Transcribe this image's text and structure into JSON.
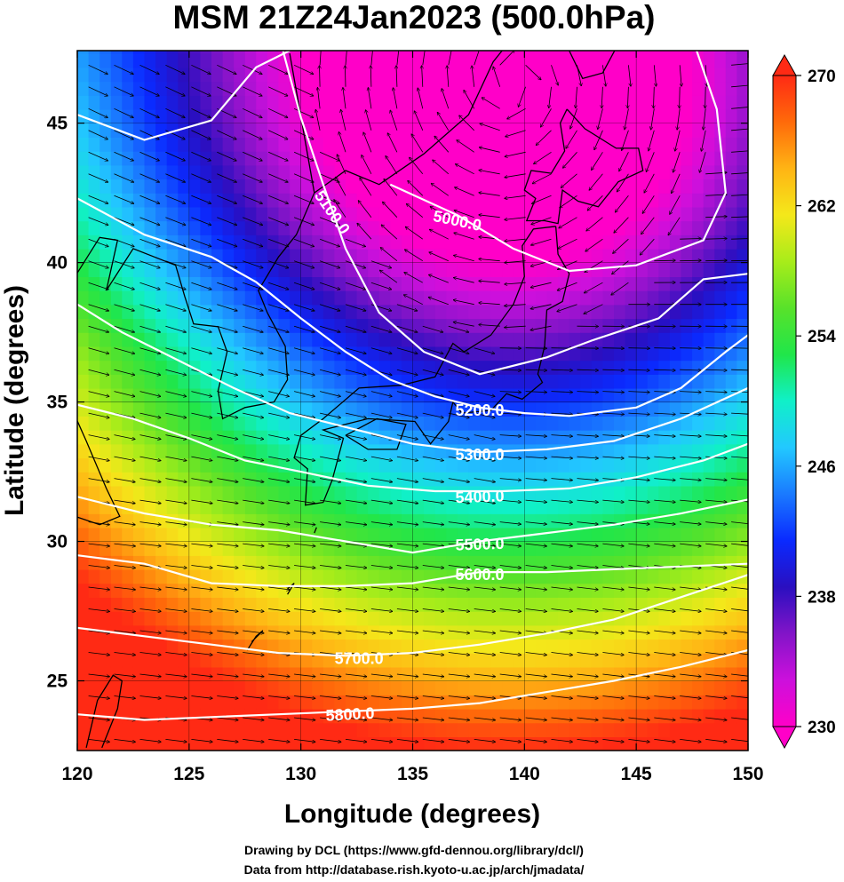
{
  "title": "MSM 21Z24Jan2023 (500.0hPa)",
  "axes": {
    "xlabel": "Longitude (degrees)",
    "ylabel": "Latitude  (degrees)",
    "x_range": [
      120,
      150
    ],
    "y_range": [
      22.5,
      47.6
    ],
    "x_ticks": [
      "120",
      "125",
      "130",
      "135",
      "140",
      "145",
      "150"
    ],
    "y_ticks": [
      "25",
      "30",
      "35",
      "40",
      "45"
    ],
    "grid": true
  },
  "colorbar": {
    "ticks": [
      "270",
      "262",
      "254",
      "246",
      "238",
      "230"
    ],
    "range": [
      230,
      270
    ],
    "orientation": "vertical",
    "extend": "both",
    "palette": [
      "#ff00c8",
      "#cc10dc",
      "#8214c8",
      "#2a0fc0",
      "#0a2aff",
      "#1a7aff",
      "#22c8ff",
      "#10f0c8",
      "#20e64a",
      "#58e22a",
      "#a8ec1a",
      "#f4e81a",
      "#ffb414",
      "#ff6a0a",
      "#ff2a14"
    ]
  },
  "chart_data": {
    "type": "heatmap",
    "field": "temperature",
    "contours": [
      {
        "label": "5000.0",
        "points": [
          [
            134.0,
            42.8
          ],
          [
            137.0,
            41.7
          ],
          [
            139.5,
            40.5
          ],
          [
            142.0,
            39.7
          ],
          [
            145.0,
            39.9
          ],
          [
            148.0,
            40.8
          ],
          [
            149.0,
            42.5
          ],
          [
            148.6,
            45.5
          ],
          [
            147.7,
            47.6
          ]
        ]
      },
      {
        "label": "5100.0",
        "points": [
          [
            120.0,
            45.3
          ],
          [
            123.0,
            44.4
          ],
          [
            126.0,
            45.1
          ],
          [
            128.0,
            47.0
          ],
          [
            129.5,
            47.6
          ]
        ]
      },
      {
        "label": "5100.0",
        "points": [
          [
            129.2,
            47.6
          ],
          [
            130.0,
            45.2
          ],
          [
            131.0,
            42.8
          ],
          [
            132.0,
            40.5
          ],
          [
            133.5,
            38.2
          ],
          [
            135.5,
            36.8
          ],
          [
            138.0,
            36.0
          ],
          [
            141.0,
            36.6
          ],
          [
            143.0,
            37.2
          ],
          [
            146.0,
            38.0
          ],
          [
            148.0,
            39.4
          ],
          [
            150.0,
            39.6
          ]
        ]
      },
      {
        "label": "5200.0",
        "points": [
          [
            120.0,
            42.3
          ],
          [
            123.0,
            41.0
          ],
          [
            126.0,
            40.2
          ],
          [
            128.0,
            39.3
          ],
          [
            130.0,
            38.0
          ],
          [
            132.0,
            36.8
          ],
          [
            134.0,
            35.8
          ],
          [
            136.0,
            35.2
          ],
          [
            138.0,
            34.8
          ],
          [
            140.0,
            34.6
          ],
          [
            142.0,
            34.5
          ],
          [
            145.0,
            34.8
          ],
          [
            147.0,
            35.5
          ],
          [
            149.0,
            36.8
          ],
          [
            150.0,
            37.4
          ]
        ]
      },
      {
        "label": "5300.0",
        "points": [
          [
            120.0,
            38.5
          ],
          [
            122.0,
            37.5
          ],
          [
            124.5,
            36.5
          ],
          [
            127.0,
            35.5
          ],
          [
            129.5,
            34.6
          ],
          [
            132.0,
            34.1
          ],
          [
            135.0,
            33.5
          ],
          [
            138.0,
            33.2
          ],
          [
            141.0,
            33.3
          ],
          [
            144.0,
            33.6
          ],
          [
            147.0,
            34.4
          ],
          [
            150.0,
            35.5
          ]
        ]
      },
      {
        "label": "5400.0",
        "points": [
          [
            120.0,
            34.9
          ],
          [
            122.5,
            34.4
          ],
          [
            125.0,
            33.7
          ],
          [
            127.5,
            32.9
          ],
          [
            130.0,
            32.5
          ],
          [
            133.0,
            32.0
          ],
          [
            136.0,
            31.8
          ],
          [
            139.0,
            31.8
          ],
          [
            142.0,
            31.9
          ],
          [
            145.0,
            32.3
          ],
          [
            148.0,
            32.9
          ],
          [
            150.0,
            33.5
          ]
        ]
      },
      {
        "label": "5500.0",
        "points": [
          [
            120.0,
            31.6
          ],
          [
            123.0,
            31.0
          ],
          [
            126.0,
            30.6
          ],
          [
            129.0,
            30.4
          ],
          [
            132.0,
            30.0
          ],
          [
            135.0,
            29.6
          ],
          [
            138.0,
            30.0
          ],
          [
            141.0,
            30.3
          ],
          [
            144.0,
            30.6
          ],
          [
            147.0,
            31.0
          ],
          [
            150.0,
            31.5
          ]
        ]
      },
      {
        "label": "5600.0",
        "points": [
          [
            120.0,
            29.5
          ],
          [
            123.0,
            29.2
          ],
          [
            126.0,
            28.5
          ],
          [
            129.0,
            28.4
          ],
          [
            132.0,
            28.4
          ],
          [
            135.0,
            28.5
          ],
          [
            138.0,
            28.9
          ],
          [
            141.0,
            28.9
          ],
          [
            144.0,
            29.0
          ],
          [
            147.0,
            29.1
          ],
          [
            150.0,
            29.2
          ]
        ]
      },
      {
        "label": "5700.0",
        "points": [
          [
            120.0,
            26.9
          ],
          [
            123.0,
            26.6
          ],
          [
            126.0,
            26.3
          ],
          [
            129.0,
            26.0
          ],
          [
            132.0,
            25.9
          ],
          [
            135.0,
            26.0
          ],
          [
            138.0,
            26.3
          ],
          [
            141.0,
            26.7
          ],
          [
            144.0,
            27.2
          ],
          [
            147.0,
            28.0
          ],
          [
            150.0,
            28.8
          ]
        ]
      },
      {
        "label": "5800.0",
        "points": [
          [
            120.0,
            23.8
          ],
          [
            123.0,
            23.6
          ],
          [
            126.0,
            23.7
          ],
          [
            129.0,
            23.8
          ],
          [
            132.0,
            23.9
          ],
          [
            135.0,
            24.0
          ],
          [
            138.0,
            24.2
          ],
          [
            141.0,
            24.6
          ],
          [
            144.0,
            25.0
          ],
          [
            147.0,
            25.5
          ],
          [
            150.0,
            26.1
          ]
        ]
      }
    ]
  },
  "credits": {
    "line1": "Drawing by DCL (https://www.gfd-dennou.org/library/dcl/)",
    "line2": "Data from http://database.rish.kyoto-u.ac.jp/arch/jmadata/"
  }
}
